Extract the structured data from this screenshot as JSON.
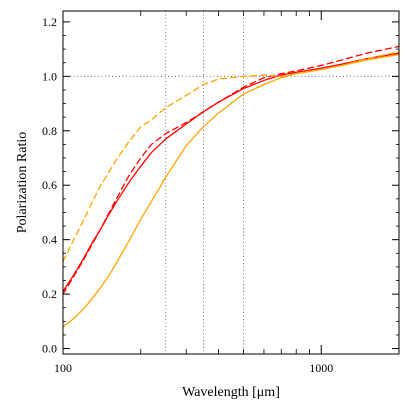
{
  "chart_data": {
    "type": "line",
    "title": "",
    "xlabel": "Wavelength [μm]",
    "ylabel": "Polarization Ratio",
    "xscale": "log",
    "xlim": [
      100,
      2000
    ],
    "ylim": [
      -0.02,
      1.24
    ],
    "grid": false,
    "legend": "none",
    "x_ticks": [
      {
        "value": 100,
        "label": "100"
      },
      {
        "value": 1000,
        "label": "1000"
      }
    ],
    "y_ticks": [
      {
        "value": 0.0,
        "label": "0.0"
      },
      {
        "value": 0.2,
        "label": "0.2"
      },
      {
        "value": 0.4,
        "label": "0.4"
      },
      {
        "value": 0.6,
        "label": "0.6"
      },
      {
        "value": 0.8,
        "label": "0.8"
      },
      {
        "value": 1.0,
        "label": "1.0"
      },
      {
        "value": 1.2,
        "label": "1.2"
      }
    ],
    "reference_lines": [
      {
        "orientation": "vertical",
        "value": 250
      },
      {
        "orientation": "vertical",
        "value": 350
      },
      {
        "orientation": "vertical",
        "value": 500
      },
      {
        "orientation": "horizontal",
        "value": 1.0
      }
    ],
    "series": [
      {
        "color": "#ff0000",
        "style": "solid",
        "x": [
          100,
          110,
          120,
          130,
          140,
          150,
          160,
          180,
          200,
          220,
          250,
          300,
          350,
          400,
          500,
          600,
          700,
          800,
          1000,
          1200,
          1500,
          2000
        ],
        "y": [
          0.21,
          0.27,
          0.33,
          0.39,
          0.44,
          0.49,
          0.535,
          0.61,
          0.67,
          0.72,
          0.77,
          0.825,
          0.87,
          0.905,
          0.955,
          0.985,
          1.005,
          1.015,
          1.03,
          1.045,
          1.065,
          1.085
        ]
      },
      {
        "color": "#ff0000",
        "style": "dashed",
        "x": [
          100,
          110,
          120,
          130,
          140,
          150,
          160,
          180,
          200,
          220,
          250,
          300,
          350,
          400,
          500,
          600,
          700,
          800,
          1000,
          1200,
          1500,
          2000
        ],
        "y": [
          0.2,
          0.265,
          0.325,
          0.385,
          0.44,
          0.495,
          0.545,
          0.635,
          0.7,
          0.75,
          0.79,
          0.83,
          0.87,
          0.905,
          0.96,
          0.995,
          1.01,
          1.02,
          1.04,
          1.06,
          1.085,
          1.11
        ]
      },
      {
        "color": "#ffa500",
        "style": "solid",
        "x": [
          100,
          110,
          120,
          130,
          140,
          150,
          160,
          180,
          200,
          220,
          250,
          300,
          350,
          400,
          500,
          600,
          700,
          800,
          1000,
          1200,
          1500,
          2000
        ],
        "y": [
          0.08,
          0.11,
          0.145,
          0.185,
          0.225,
          0.265,
          0.31,
          0.395,
          0.475,
          0.54,
          0.63,
          0.745,
          0.815,
          0.865,
          0.935,
          0.97,
          0.995,
          1.01,
          1.025,
          1.04,
          1.06,
          1.08
        ]
      },
      {
        "color": "#ffa500",
        "style": "dashed",
        "x": [
          100,
          110,
          120,
          130,
          140,
          150,
          160,
          180,
          200,
          220,
          250,
          300,
          350,
          400,
          500,
          600,
          700,
          800,
          1000,
          1200,
          1500,
          2000
        ],
        "y": [
          0.32,
          0.4,
          0.47,
          0.54,
          0.6,
          0.645,
          0.69,
          0.76,
          0.815,
          0.84,
          0.885,
          0.93,
          0.97,
          0.99,
          1.0,
          1.005,
          1.0,
          1.01,
          1.025,
          1.04,
          1.065,
          1.09
        ]
      }
    ]
  }
}
